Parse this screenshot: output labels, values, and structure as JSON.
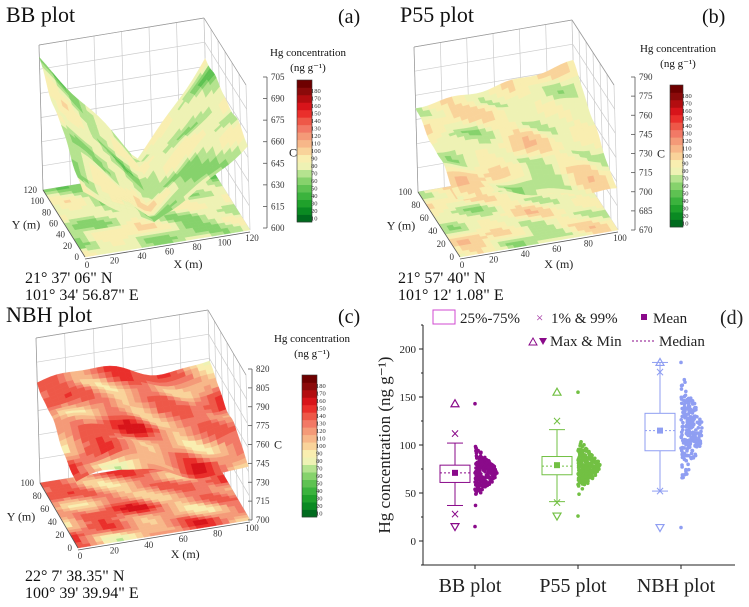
{
  "panels": [
    {
      "id": "a",
      "title": "BB plot",
      "label": "(a)",
      "lat": "21° 37' 06\" N",
      "lon": "101° 34' 56.87\" E",
      "x_ticks": [
        "0",
        "20",
        "40",
        "60",
        "80",
        "100",
        "120"
      ],
      "y_ticks": [
        "0",
        "20",
        "40",
        "60",
        "80",
        "100",
        "120"
      ],
      "z_ticks": [
        "600",
        "615",
        "630",
        "645",
        "660",
        "675",
        "690",
        "705"
      ],
      "x_label": "X (m)",
      "y_label": "Y (m)",
      "z_label": "C",
      "colorbar_title": "Hg concentration",
      "colorbar_unit": "(ng g⁻¹)"
    },
    {
      "id": "b",
      "title": "P55 plot",
      "label": "(b)",
      "lat": "21° 57' 40\" N",
      "lon": "101° 12' 1.08\" E",
      "x_ticks": [
        "0",
        "20",
        "40",
        "60",
        "80",
        "100"
      ],
      "y_ticks": [
        "0",
        "20",
        "40",
        "60",
        "80",
        "100"
      ],
      "z_ticks": [
        "670",
        "685",
        "700",
        "715",
        "730",
        "745",
        "760",
        "775",
        "790"
      ],
      "x_label": "X (m)",
      "y_label": "Y (m)",
      "z_label": "C",
      "colorbar_title": "Hg concentration",
      "colorbar_unit": "(ng g⁻¹)"
    },
    {
      "id": "c",
      "title": "NBH plot",
      "label": "(c)",
      "lat": "22° 7' 38.35\" N",
      "lon": "100° 39' 39.94\" E",
      "x_ticks": [
        "0",
        "20",
        "40",
        "60",
        "80",
        "100"
      ],
      "y_ticks": [
        "0",
        "20",
        "40",
        "60",
        "80",
        "100"
      ],
      "z_ticks": [
        "700",
        "715",
        "730",
        "745",
        "760",
        "775",
        "790",
        "805",
        "820"
      ],
      "x_label": "X (m)",
      "y_label": "Y (m)",
      "z_label": "C",
      "colorbar_title": "Hg concentration",
      "colorbar_unit": "(ng g⁻¹)"
    }
  ],
  "colorbar": {
    "ticks": [
      "10",
      "20",
      "30",
      "40",
      "50",
      "60",
      "70",
      "80",
      "90",
      "100",
      "110",
      "120",
      "130",
      "140",
      "150",
      "160",
      "170",
      "180"
    ],
    "colors": [
      "#006b1e",
      "#0a8a22",
      "#1fa12b",
      "#3bb33d",
      "#5ec252",
      "#86d26c",
      "#b5e38f",
      "#eef2b4",
      "#f9eeb0",
      "#f9d39a",
      "#f7b789",
      "#f49a78",
      "#f27966",
      "#ee5848",
      "#ea2f2b",
      "#d8141a",
      "#b30d10",
      "#8b0a0a",
      "#6e0000"
    ]
  },
  "chart_data": {
    "type": "box",
    "panel_label": "(d)",
    "ylabel": "Hg concentration (ng g⁻¹)",
    "ylim": [
      -25,
      225
    ],
    "yticks": [
      "0",
      "50",
      "100",
      "150",
      "200"
    ],
    "categories": [
      "BB plot",
      "P55 plot",
      "NBH plot"
    ],
    "legend": {
      "box": "25%-75%",
      "percentiles": "1% & 99%",
      "mean": "Mean",
      "maxmin": "Max & Min",
      "median": "Median"
    },
    "legend_placement": "top",
    "series": [
      {
        "category": "BB plot",
        "color": "#8a0a8a",
        "q1": 61,
        "q3": 79,
        "median": 71,
        "mean": 71,
        "whisker_low": 37,
        "whisker_high": 102,
        "p1": 28,
        "p99": 112,
        "min": 15,
        "max": 143
      },
      {
        "category": "P55 plot",
        "color": "#72c043",
        "q1": 69,
        "q3": 88,
        "median": 78,
        "mean": 79,
        "whisker_low": 41,
        "whisker_high": 116,
        "p1": 40,
        "p99": 125,
        "min": 26,
        "max": 155
      },
      {
        "category": "NBH plot",
        "color": "#8f9ef2",
        "q1": 94,
        "q3": 133,
        "median": 115,
        "mean": 115,
        "whisker_low": 52,
        "whisker_high": 186,
        "p1": 52,
        "p99": 176,
        "min": 14,
        "max": 186
      }
    ]
  }
}
